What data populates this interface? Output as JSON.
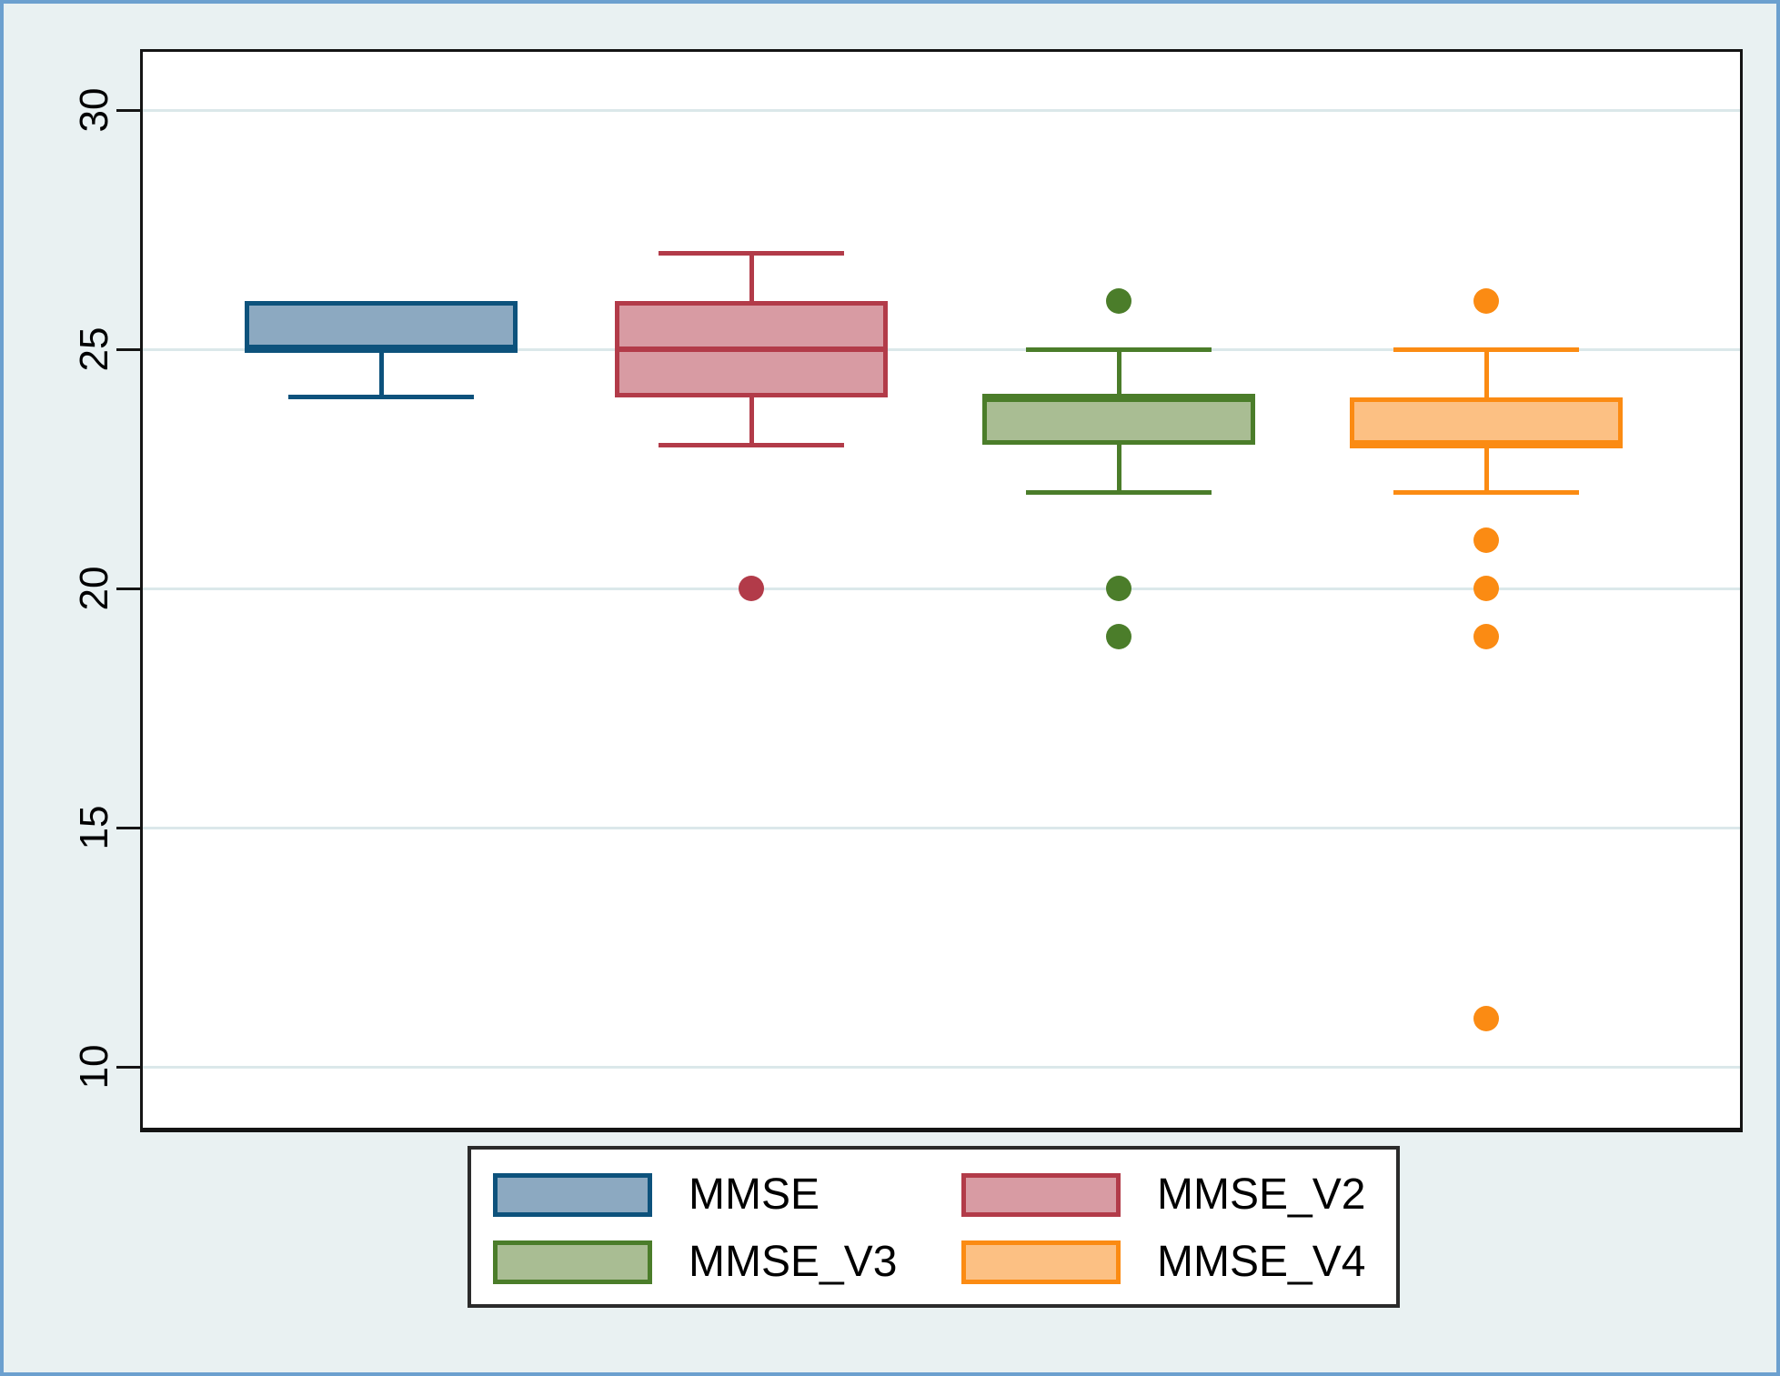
{
  "chart_data": {
    "type": "box",
    "title": "",
    "xlabel": "",
    "ylabel": "",
    "yticks": [
      30,
      25,
      20,
      15,
      10
    ],
    "ylim": [
      8.65,
      31.22
    ],
    "grid": "horizontal gridlines at each y tick",
    "legend_position": "bottom-center",
    "background_color": "#e9f1f2",
    "plot_background": "#ffffff",
    "gridline_color": "#dbe8ea",
    "axis_color": "#141414",
    "series": [
      {
        "name": "MMSE",
        "line_color": "#0d527c",
        "fill_color": "#8ca9c1",
        "box": {
          "whisker_low": 24,
          "q1": 25,
          "median": 25,
          "q3": 26,
          "whisker_high": 26
        },
        "outliers": []
      },
      {
        "name": "MMSE_V2",
        "line_color": "#b23b49",
        "fill_color": "#d89ba3",
        "box": {
          "whisker_low": 23,
          "q1": 24,
          "median": 25,
          "q3": 26,
          "whisker_high": 27
        },
        "outliers": [
          20
        ]
      },
      {
        "name": "MMSE_V3",
        "line_color": "#4b7d2a",
        "fill_color": "#a9bd93",
        "box": {
          "whisker_low": 22,
          "q1": 23,
          "median": 24,
          "q3": 24,
          "whisker_high": 25
        },
        "outliers": [
          26,
          20,
          19
        ]
      },
      {
        "name": "MMSE_V4",
        "line_color": "#fb8b13",
        "fill_color": "#fcc083",
        "box": {
          "whisker_low": 22,
          "q1": 23,
          "median": 23,
          "q3": 24,
          "whisker_high": 25
        },
        "outliers": [
          26,
          21,
          20,
          19,
          11
        ]
      }
    ]
  }
}
